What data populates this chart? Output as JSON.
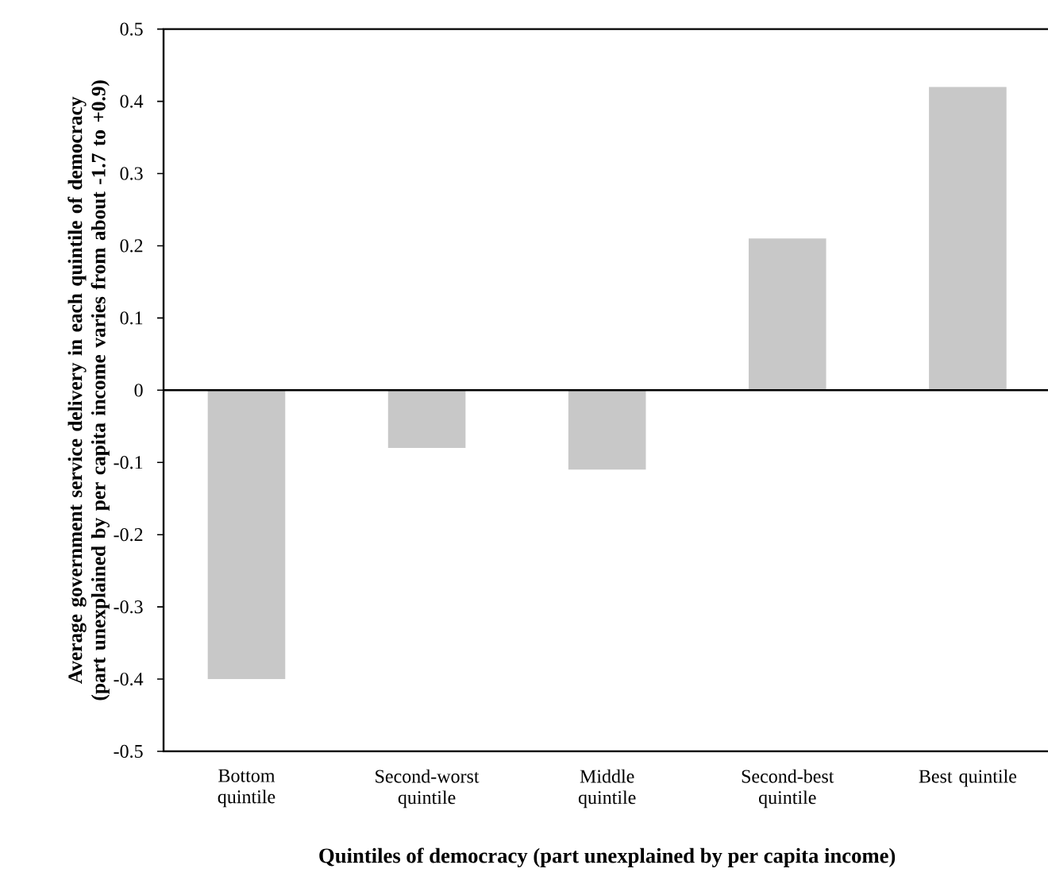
{
  "chart_data": {
    "type": "bar",
    "xlabel": "Quintiles of democracy (part unexplained by per capita income)",
    "ylabel": "Average government service delivery in each quintile of democracy (part unexplained by per capita income varies from about -1.7 to +0.9)",
    "categories": [
      "Bottom quintile",
      "Second-worst quintile",
      "Middle quintile",
      "Second-best quintile",
      "Best quintile"
    ],
    "values": [
      -0.4,
      -0.08,
      -0.11,
      0.21,
      0.42
    ],
    "color": "#c8c8c8",
    "ylim": [
      -0.5,
      0.5
    ],
    "yticks": [
      -0.5,
      -0.4,
      -0.3,
      -0.2,
      -0.1,
      0,
      0.1,
      0.2,
      0.3,
      0.4,
      0.5
    ]
  }
}
